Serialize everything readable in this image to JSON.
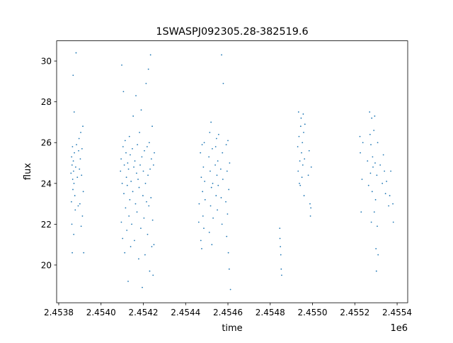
{
  "chart_data": {
    "type": "scatter",
    "title": "1SWASPJ092305.28-382519.6",
    "xlabel": "time",
    "ylabel": "flux",
    "x_offset_label": "1e6",
    "xlim": [
      2453790,
      2455450
    ],
    "ylim": [
      18.15,
      30.99
    ],
    "xticks": [
      2453800,
      2454000,
      2454200,
      2454400,
      2454600,
      2454800,
      2455000,
      2455200,
      2455400
    ],
    "xtick_labels": [
      "2.4538",
      "2.4540",
      "2.4542",
      "2.4544",
      "2.4546",
      "2.4548",
      "2.4550",
      "2.4552",
      "2.4554"
    ],
    "yticks": [
      20,
      22,
      24,
      26,
      28,
      30
    ],
    "ytick_labels": [
      "20",
      "22",
      "24",
      "26",
      "28",
      "30"
    ],
    "grid": false,
    "color": "#1f77b4",
    "points": [
      [
        2453858,
        24.5
      ],
      [
        2453860,
        23.1
      ],
      [
        2453861,
        25.3
      ],
      [
        2453862,
        22.0
      ],
      [
        2453863,
        24.9
      ],
      [
        2453864,
        20.6
      ],
      [
        2453865,
        25.8
      ],
      [
        2453866,
        24.2
      ],
      [
        2453867,
        23.7
      ],
      [
        2453868,
        29.3
      ],
      [
        2453869,
        25.1
      ],
      [
        2453870,
        24.6
      ],
      [
        2453871,
        21.5
      ],
      [
        2453872,
        24.0
      ],
      [
        2453873,
        27.5
      ],
      [
        2453874,
        25.5
      ],
      [
        2453876,
        23.4
      ],
      [
        2453878,
        22.7
      ],
      [
        2453880,
        24.8
      ],
      [
        2453882,
        30.4
      ],
      [
        2453884,
        25.9
      ],
      [
        2453888,
        24.3
      ],
      [
        2453892,
        22.9
      ],
      [
        2453894,
        25.6
      ],
      [
        2453896,
        26.2
      ],
      [
        2453898,
        24.7
      ],
      [
        2453900,
        23.0
      ],
      [
        2453902,
        25.2
      ],
      [
        2453904,
        26.5
      ],
      [
        2453906,
        21.9
      ],
      [
        2453908,
        24.4
      ],
      [
        2453910,
        25.7
      ],
      [
        2453912,
        22.4
      ],
      [
        2453914,
        26.8
      ],
      [
        2453916,
        23.6
      ],
      [
        2453918,
        20.6
      ],
      [
        2454092,
        24.6
      ],
      [
        2454095,
        25.2
      ],
      [
        2454096,
        22.1
      ],
      [
        2454098,
        29.8
      ],
      [
        2454100,
        24.0
      ],
      [
        2454102,
        21.3
      ],
      [
        2454104,
        25.8
      ],
      [
        2454106,
        28.5
      ],
      [
        2454108,
        23.5
      ],
      [
        2454110,
        24.9
      ],
      [
        2454112,
        20.6
      ],
      [
        2454114,
        26.1
      ],
      [
        2454116,
        22.8
      ],
      [
        2454118,
        25.5
      ],
      [
        2454120,
        24.3
      ],
      [
        2454122,
        21.7
      ],
      [
        2454124,
        23.9
      ],
      [
        2454126,
        25.0
      ],
      [
        2454128,
        19.2
      ],
      [
        2454130,
        24.7
      ],
      [
        2454132,
        22.4
      ],
      [
        2454134,
        26.3
      ],
      [
        2454136,
        23.2
      ],
      [
        2454138,
        25.4
      ],
      [
        2454140,
        20.9
      ],
      [
        2454142,
        24.1
      ],
      [
        2454145,
        22.0
      ],
      [
        2454148,
        25.7
      ],
      [
        2454150,
        23.6
      ],
      [
        2454152,
        27.3
      ],
      [
        2454155,
        24.8
      ],
      [
        2454158,
        21.2
      ],
      [
        2454160,
        25.1
      ],
      [
        2454163,
        23.0
      ],
      [
        2454165,
        28.3
      ],
      [
        2454168,
        24.5
      ],
      [
        2454170,
        22.6
      ],
      [
        2454172,
        25.9
      ],
      [
        2454175,
        24.2
      ],
      [
        2454178,
        20.3
      ],
      [
        2454180,
        23.8
      ],
      [
        2454182,
        26.5
      ],
      [
        2454185,
        24.9
      ],
      [
        2454188,
        21.8
      ],
      [
        2454190,
        27.6
      ],
      [
        2454193,
        25.3
      ],
      [
        2454195,
        18.9
      ],
      [
        2454198,
        23.4
      ],
      [
        2454200,
        24.6
      ],
      [
        2454203,
        22.3
      ],
      [
        2454205,
        25.6
      ],
      [
        2454208,
        20.5
      ],
      [
        2454210,
        24.0
      ],
      [
        2454213,
        28.9
      ],
      [
        2454215,
        23.1
      ],
      [
        2454218,
        25.8
      ],
      [
        2454220,
        21.5
      ],
      [
        2454222,
        24.4
      ],
      [
        2454224,
        29.6
      ],
      [
        2454226,
        22.9
      ],
      [
        2454228,
        26.0
      ],
      [
        2454230,
        19.7
      ],
      [
        2454232,
        24.7
      ],
      [
        2454234,
        30.3
      ],
      [
        2454236,
        23.3
      ],
      [
        2454238,
        25.2
      ],
      [
        2454240,
        20.9
      ],
      [
        2454242,
        26.8
      ],
      [
        2454244,
        22.2
      ],
      [
        2454246,
        19.5
      ],
      [
        2454248,
        24.9
      ],
      [
        2454250,
        21.0
      ],
      [
        2454252,
        25.5
      ],
      [
        2454462,
        22.1
      ],
      [
        2454464,
        23.0
      ],
      [
        2454470,
        25.5
      ],
      [
        2454472,
        21.2
      ],
      [
        2454474,
        24.3
      ],
      [
        2454476,
        20.8
      ],
      [
        2454478,
        25.9
      ],
      [
        2454480,
        23.6
      ],
      [
        2454482,
        22.4
      ],
      [
        2454484,
        24.8
      ],
      [
        2454486,
        21.8
      ],
      [
        2454488,
        26.0
      ],
      [
        2454490,
        24.1
      ],
      [
        2454492,
        23.2
      ],
      [
        2454510,
        25.3
      ],
      [
        2454512,
        21.6
      ],
      [
        2454514,
        26.5
      ],
      [
        2454516,
        24.6
      ],
      [
        2454518,
        22.9
      ],
      [
        2454520,
        27.0
      ],
      [
        2454522,
        23.8
      ],
      [
        2454524,
        21.0
      ],
      [
        2454526,
        25.7
      ],
      [
        2454528,
        24.0
      ],
      [
        2454530,
        22.3
      ],
      [
        2454540,
        24.9
      ],
      [
        2454542,
        25.8
      ],
      [
        2454544,
        23.4
      ],
      [
        2454546,
        26.2
      ],
      [
        2454548,
        24.4
      ],
      [
        2454550,
        22.7
      ],
      [
        2454552,
        25.1
      ],
      [
        2454554,
        23.9
      ],
      [
        2454556,
        26.4
      ],
      [
        2454566,
        24.7
      ],
      [
        2454568,
        23.3
      ],
      [
        2454570,
        30.3
      ],
      [
        2454572,
        22.0
      ],
      [
        2454574,
        25.5
      ],
      [
        2454576,
        24.2
      ],
      [
        2454578,
        28.9
      ],
      [
        2454590,
        23.1
      ],
      [
        2454592,
        25.9
      ],
      [
        2454594,
        21.4
      ],
      [
        2454596,
        24.6
      ],
      [
        2454598,
        22.5
      ],
      [
        2454600,
        26.1
      ],
      [
        2454602,
        20.6
      ],
      [
        2454604,
        23.7
      ],
      [
        2454606,
        19.8
      ],
      [
        2454608,
        25.0
      ],
      [
        2454612,
        18.8
      ],
      [
        2454845,
        21.8
      ],
      [
        2454846,
        21.3
      ],
      [
        2454848,
        20.9
      ],
      [
        2454850,
        20.5
      ],
      [
        2454852,
        19.8
      ],
      [
        2454854,
        19.5
      ],
      [
        2454930,
        25.8
      ],
      [
        2454932,
        24.6
      ],
      [
        2454934,
        27.5
      ],
      [
        2454936,
        26.3
      ],
      [
        2454938,
        24.0
      ],
      [
        2454940,
        25.1
      ],
      [
        2454942,
        23.9
      ],
      [
        2454944,
        26.8
      ],
      [
        2454946,
        27.2
      ],
      [
        2454948,
        25.5
      ],
      [
        2454950,
        24.3
      ],
      [
        2454952,
        26.0
      ],
      [
        2454954,
        24.9
      ],
      [
        2454956,
        27.4
      ],
      [
        2454958,
        26.5
      ],
      [
        2454960,
        23.4
      ],
      [
        2454962,
        25.2
      ],
      [
        2454964,
        26.9
      ],
      [
        2454980,
        24.4
      ],
      [
        2454984,
        25.6
      ],
      [
        2454988,
        23.0
      ],
      [
        2454990,
        22.4
      ],
      [
        2454992,
        22.8
      ],
      [
        2454994,
        24.8
      ],
      [
        2455224,
        26.3
      ],
      [
        2455226,
        25.5
      ],
      [
        2455230,
        22.6
      ],
      [
        2455234,
        24.2
      ],
      [
        2455238,
        26.0
      ],
      [
        2455260,
        25.1
      ],
      [
        2455265,
        23.9
      ],
      [
        2455270,
        27.5
      ],
      [
        2455272,
        26.4
      ],
      [
        2455274,
        24.5
      ],
      [
        2455276,
        25.9
      ],
      [
        2455278,
        22.1
      ],
      [
        2455280,
        27.2
      ],
      [
        2455282,
        23.6
      ],
      [
        2455284,
        25.3
      ],
      [
        2455286,
        24.8
      ],
      [
        2455290,
        26.6
      ],
      [
        2455292,
        22.6
      ],
      [
        2455294,
        27.3
      ],
      [
        2455296,
        25.0
      ],
      [
        2455298,
        23.2
      ],
      [
        2455300,
        20.8
      ],
      [
        2455302,
        19.7
      ],
      [
        2455304,
        24.4
      ],
      [
        2455306,
        21.9
      ],
      [
        2455308,
        26.0
      ],
      [
        2455310,
        20.5
      ],
      [
        2455320,
        24.9
      ],
      [
        2455330,
        24.0
      ],
      [
        2455335,
        25.4
      ],
      [
        2455340,
        24.6
      ],
      [
        2455345,
        23.5
      ],
      [
        2455350,
        24.1
      ],
      [
        2455360,
        22.9
      ],
      [
        2455365,
        23.4
      ],
      [
        2455370,
        24.6
      ],
      [
        2455380,
        23.0
      ],
      [
        2455382,
        22.1
      ]
    ]
  }
}
